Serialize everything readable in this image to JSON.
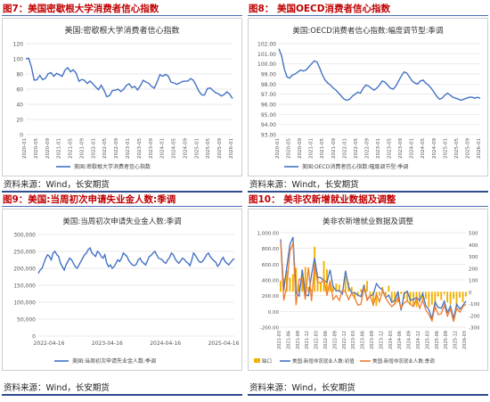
{
  "figures": [
    {
      "caption": "图7：美国密歇根大学消费者信心指数",
      "source": "资料来源：Wind，长安期货",
      "chart_data": {
        "type": "line",
        "title": "美国:密歇根大学消费者信心指数",
        "x_ticks": [
          "2020-01",
          "2020-05",
          "2020-09",
          "2021-01",
          "2021-05",
          "2021-09",
          "2022-01",
          "2022-05",
          "2022-09",
          "2023-01",
          "2023-05",
          "2023-09",
          "2024-01",
          "2024-05",
          "2024-09",
          "2025-01",
          "2025-05",
          "2025-09",
          "2026-01"
        ],
        "y_ticks": [
          "0",
          "20",
          "40",
          "60",
          "80",
          "100",
          "120"
        ],
        "ylim": [
          0,
          120
        ],
        "series": [
          {
            "name": "美国:密歇根大学消费者信心指数",
            "color": "#4472c4",
            "values": [
              99.8,
              101,
              89.1,
              71.8,
              72.3,
              78.1,
              72.5,
              74.1,
              80.4,
              81.8,
              76.9,
              80.7,
              79,
              76.8,
              84.9,
              88.3,
              82.9,
              85.5,
              81.2,
              70.3,
              72.8,
              71.7,
              67.4,
              70.6,
              67.2,
              62.8,
              59.4,
              65.2,
              58.4,
              50,
              51.5,
              58.2,
              58.6,
              59.9,
              56.8,
              59.7,
              64.9,
              67,
              62,
              63.5,
              59,
              64.2,
              71.6,
              69.4,
              67.8,
              63.8,
              61.3,
              69.7,
              79,
              76.9,
              79.4,
              77.2,
              69.1,
              68.2,
              66.4,
              67.9,
              70.1,
              70.5,
              70.5,
              74,
              71.7,
              64.7,
              57,
              52.2,
              52.2,
              60.7,
              61.7,
              58.2,
              55.1,
              53.6,
              51,
              52.9,
              56.4,
              53.3,
              47.5
            ]
          }
        ],
        "legend": "bottom"
      }
    },
    {
      "caption": "图8：  美国OECD消费者信心指数",
      "source": "资料来源：Windt，长安期货",
      "chart_data": {
        "type": "line",
        "title": "美国:OECD消费者信心指数:幅度调节型:季调",
        "x_ticks": [
          "2020-01",
          "2020-05",
          "2020-09",
          "2021-01",
          "2021-05",
          "2021-09",
          "2022-01",
          "2022-05",
          "2022-09",
          "2023-01",
          "2023-05",
          "2023-09",
          "2024-01",
          "2024-05",
          "2024-09",
          "2025-01",
          "2025-05",
          "2025-09",
          "2026-01"
        ],
        "y_ticks": [
          "93.00",
          "94.00",
          "95.00",
          "96.00",
          "97.00",
          "98.00",
          "99.00",
          "100.00",
          "101.00",
          "102.00"
        ],
        "ylim": [
          93,
          102
        ],
        "series": [
          {
            "name": "美国:OECD消费者信心指数:幅度调节型:季调",
            "color": "#4472c4",
            "values": [
              101.5,
              100.8,
              99.5,
              98.7,
              98.6,
              98.9,
              99,
              99.2,
              99.4,
              99.3,
              99.4,
              99.7,
              100,
              100.3,
              100.2,
              99.6,
              98.9,
              98.4,
              98.1,
              97.9,
              97.6,
              97.4,
              97.1,
              96.8,
              96.5,
              96.4,
              96.5,
              96.8,
              97,
              97.2,
              97.1,
              97.6,
              97.9,
              97.8,
              97.6,
              97.4,
              97.6,
              97.9,
              98.3,
              98.2,
              97.9,
              97.6,
              97.5,
              97.8,
              98.3,
              98.8,
              99.2,
              99.1,
              98.7,
              98.3,
              98.1,
              98,
              98.3,
              98.4,
              98.1,
              97.9,
              97.6,
              97.2,
              96.8,
              96.5,
              96.6,
              96.9,
              97.1,
              96.9,
              96.7,
              96.6,
              96.5,
              96.4,
              96.5,
              96.6,
              96.7,
              96.7,
              96.6,
              96.7,
              96.6
            ]
          }
        ],
        "legend": "bottom"
      }
    },
    {
      "caption": "图9：美国:当周初次申请失业金人数:季调",
      "source": "资料来源：Wind，长安期货",
      "chart_data": {
        "type": "line",
        "title": "美国:当周初次申请失业金人数:季调",
        "x_ticks": [
          "2022-04-16",
          "2023-04-16",
          "2024-04-16",
          "2025-04-16"
        ],
        "y_ticks": [
          "0",
          "50,000",
          "100,000",
          "150,000",
          "200,000",
          "250,000",
          "300,000"
        ],
        "ylim": [
          0,
          300000
        ],
        "series": [
          {
            "name": "美国:当周初次申请失业金人数:季调",
            "color": "#4472c4",
            "values": [
              185000,
              195000,
              200000,
              215000,
              230000,
              240000,
              235000,
              225000,
              245000,
              250000,
              240000,
              235000,
              215000,
              205000,
              195000,
              210000,
              220000,
              230000,
              225000,
              215000,
              205000,
              200000,
              210000,
              220000,
              230000,
              240000,
              245000,
              255000,
              260000,
              245000,
              240000,
              235000,
              250000,
              245000,
              235000,
              230000,
              240000,
              215000,
              205000,
              210000,
              200000,
              205000,
              215000,
              225000,
              220000,
              230000,
              245000,
              240000,
              235000,
              222000,
              215000,
              210000,
              208000,
              212000,
              225000,
              230000,
              220000,
              215000,
              210000,
              222000,
              235000,
              238000,
              245000,
              250000,
              240000,
              230000,
              228000,
              225000,
              218000,
              215000,
              225000,
              232000,
              245000,
              240000,
              228000,
              220000,
              215000,
              222000,
              230000,
              226000,
              219000,
              215000,
              208000,
              225000,
              245000,
              238000,
              228000,
              220000,
              217000,
              222000,
              230000,
              240000,
              245000,
              235000,
              228000,
              222000,
              218000,
              206000,
              212000,
              225000,
              232000,
              220000,
              215000,
              210000,
              217000,
              224000,
              229000
            ]
          }
        ],
        "legend": "bottom"
      }
    },
    {
      "caption": "图10：  美非农新增就业数据及调整",
      "source": "资料来源：Wind，长安期货",
      "chart_data": {
        "type": "bar",
        "title": "美非农新增就业数据及调整",
        "x_ticks": [
          "2021-03",
          "2021-06",
          "2021-09",
          "2021-12",
          "2022-03",
          "2022-06",
          "2022-09",
          "2022-12",
          "2023-03",
          "2023-06",
          "2023-09",
          "2023-12",
          "2024-03",
          "2024-06",
          "2024-09",
          "2024-12",
          "2025-03",
          "2025-06",
          "2025-09",
          "2025-12",
          "2026-03"
        ],
        "y_ticks_left": [
          "-200.00",
          "0.00",
          "200.00",
          "400.00",
          "600.00",
          "800.00",
          "1,000.00"
        ],
        "ylim_left": [
          -200,
          1000
        ],
        "y_ticks_right": [
          "-300",
          "-200",
          "-100",
          "0",
          "100",
          "200",
          "300",
          "400",
          "500"
        ],
        "ylim_right": [
          -300,
          500
        ],
        "series": [
          {
            "name": "缺口",
            "type": "bar",
            "axis": "right",
            "color": "#f2b200",
            "values": [
              90,
              110,
              180,
              120,
              150,
              200,
              60,
              150,
              210,
              40,
              20,
              380,
              130,
              80,
              260,
              190,
              90,
              50,
              70,
              60,
              -20,
              130,
              80,
              40,
              -60,
              -40,
              20,
              60,
              90,
              -40,
              -100,
              -120,
              -30,
              40,
              -30,
              50,
              -80,
              -110,
              -90,
              -20,
              -60,
              -80,
              -110,
              -120,
              -130,
              -90,
              -80,
              -60,
              -130,
              -110,
              -150,
              -40,
              -70,
              -20,
              -90,
              -110,
              -60,
              -130,
              -50,
              -90,
              -40
            ]
          },
          {
            "name": "美国:新增非农就业人数:初值",
            "type": "line",
            "axis": "left",
            "color": "#4472c4",
            "values": [
              916,
              266,
              559,
              850,
              943,
              235,
              194,
              531,
              210,
              199,
              467,
              678,
              431,
              428,
              390,
              372,
              528,
              315,
              263,
              261,
              223,
              517,
              311,
              236,
              236,
              209,
              187,
              336,
              150,
              199,
              216,
              353,
              303,
              272,
              175,
              206,
              114,
              142,
              254,
              12,
              227,
              256,
              143,
              151,
              177,
              139,
              228,
              73,
              22,
              -92,
              119,
              50,
              40,
              130,
              -13,
              67,
              -92,
              90,
              30,
              73,
              130
            ]
          },
          {
            "name": "美国:新增非农就业人数:季调",
            "type": "line",
            "axis": "left",
            "color": "#ed7d31",
            "values": [
              880,
              140,
              320,
              760,
              870,
              80,
              410,
              410,
              150,
              560,
              130,
              590,
              370,
              360,
              410,
              200,
              390,
              150,
              200,
              140,
              270,
              250,
              150,
              230,
              170,
              80,
              90,
              310,
              140,
              200,
              80,
              220,
              120,
              260,
              170,
              110,
              60,
              100,
              170,
              40,
              110,
              130,
              90,
              60,
              160,
              40,
              140,
              20,
              -40,
              -120,
              60,
              -40,
              -30,
              80,
              -60,
              30,
              -130,
              40,
              -10,
              60,
              90
            ]
          }
        ],
        "legend": "bottom"
      }
    }
  ]
}
